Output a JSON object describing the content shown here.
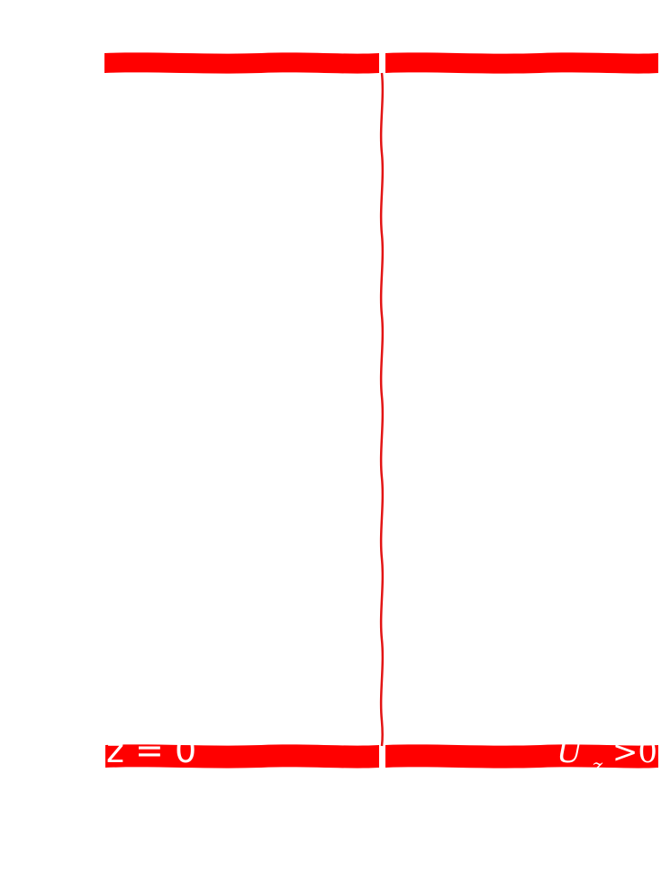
{
  "diagram": {
    "labels": {
      "bottom_left": "z = 0",
      "bottom_right_main": "U",
      "bottom_right_sub": "z",
      "bottom_right_rest": " >0"
    }
  },
  "colors": {
    "band": "#ff0000",
    "thread": "#e31414",
    "label": "#ffffff",
    "background": "#ffffff"
  }
}
